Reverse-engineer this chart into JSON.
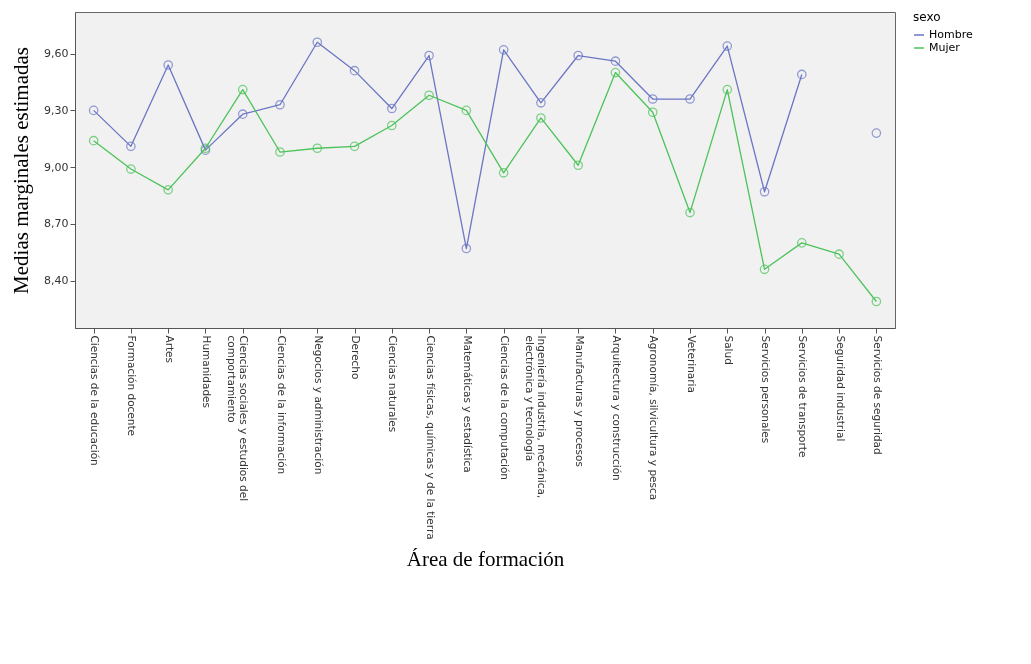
{
  "chart_data": {
    "type": "line",
    "xlabel": "Área de formación",
    "ylabel": "Medias marginales estimadas",
    "legend_title": "sexo",
    "categories": [
      "Ciencias de la educación",
      "Formación docente",
      "Artes",
      "Humanidades",
      "Ciencias sociales y estudios del comportamiento",
      "Ciencias de la información",
      "Negocios y administración",
      "Derecho",
      "Ciencias naturales",
      "Ciencias físicas, químicas y de la tierra",
      "Matemáticas y estadística",
      "Ciencias de la computación",
      "Ingeniería industria, mecánica, electrónica y tecnología",
      "Manufacturas y procesos",
      "Arquitectura y construcción",
      "Agronomía, silvicultura y pesca",
      "Veterinaria",
      "Salud",
      "Servicios personales",
      "Servicios de transporte",
      "Seguridad industrial",
      "Servicios de seguridad"
    ],
    "series": [
      {
        "name": "Hombre",
        "color": "#6b76c4",
        "values": [
          9.3,
          9.11,
          9.54,
          9.09,
          9.28,
          9.33,
          9.66,
          9.51,
          9.31,
          9.59,
          8.57,
          9.62,
          9.34,
          9.59,
          9.56,
          9.36,
          9.36,
          9.64,
          8.87,
          9.49,
          null,
          9.18
        ]
      },
      {
        "name": "Mujer",
        "color": "#4cc35a",
        "values": [
          9.14,
          8.99,
          8.88,
          9.1,
          9.41,
          9.08,
          9.1,
          9.11,
          9.22,
          9.38,
          9.3,
          8.97,
          9.26,
          9.01,
          9.5,
          9.29,
          8.76,
          9.41,
          8.46,
          8.6,
          8.54,
          8.29
        ]
      }
    ],
    "ylim": [
      8.15,
      9.82
    ],
    "yticks": [
      {
        "value": 8.4,
        "label": "8,40"
      },
      {
        "value": 8.7,
        "label": "8,70"
      },
      {
        "value": 9.0,
        "label": "9,00"
      },
      {
        "value": 9.3,
        "label": "9,30"
      },
      {
        "value": 9.6,
        "label": "9,60"
      }
    ],
    "grid": false,
    "legend": "top right",
    "marker": "circle",
    "line_style": "solid"
  }
}
